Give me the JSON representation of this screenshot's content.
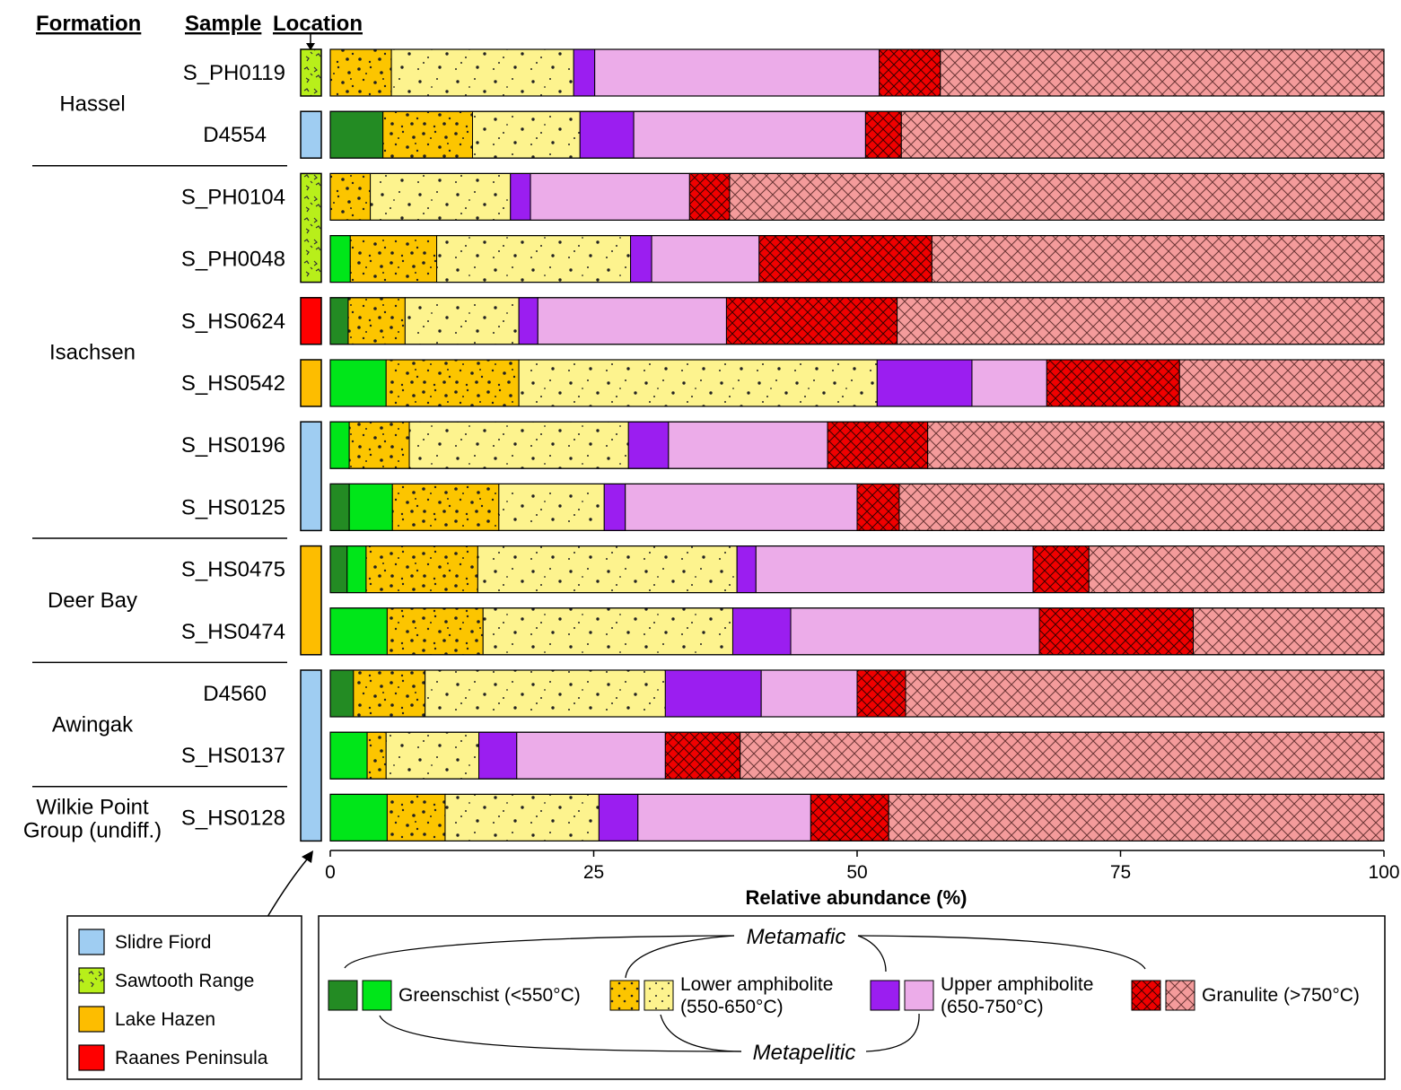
{
  "headers": {
    "formation": "Formation",
    "sample": "Sample",
    "location": "Location"
  },
  "formations": [
    {
      "name": "Hassel",
      "rows": [
        0,
        1
      ]
    },
    {
      "name": "Isachsen",
      "rows": [
        2,
        3,
        4,
        5,
        6,
        7
      ]
    },
    {
      "name": "Deer Bay",
      "rows": [
        8,
        9
      ]
    },
    {
      "name": "Awingak",
      "rows": [
        10,
        11
      ]
    },
    {
      "name": "Wilkie Point Group (undiff.)",
      "lines": [
        "Wilkie Point",
        "Group (undiff.)"
      ],
      "rows": [
        12
      ]
    }
  ],
  "locations": {
    "slidre_fiord": {
      "label": "Slidre Fiord",
      "color": "#9fcdf2"
    },
    "sawtooth_range": {
      "label": "Sawtooth Range",
      "color": "#b8ef1a"
    },
    "lake_hazen": {
      "label": "Lake Hazen",
      "color": "#fdbd00"
    },
    "raanes_peninsula": {
      "label": "Raanes Peninsula",
      "color": "#ff0000"
    }
  },
  "location_blocks": [
    {
      "location": "sawtooth_range",
      "rows": [
        0
      ]
    },
    {
      "location": "slidre_fiord",
      "rows": [
        1
      ]
    },
    {
      "location": "sawtooth_range",
      "rows": [
        2,
        3
      ]
    },
    {
      "location": "raanes_peninsula",
      "rows": [
        4
      ]
    },
    {
      "location": "lake_hazen",
      "rows": [
        5
      ]
    },
    {
      "location": "slidre_fiord",
      "rows": [
        6,
        7
      ]
    },
    {
      "location": "lake_hazen",
      "rows": [
        8,
        9
      ]
    },
    {
      "location": "slidre_fiord",
      "rows": [
        10,
        11,
        12
      ]
    }
  ],
  "categories": [
    {
      "key": "gs_mafic",
      "group": "Greenschist",
      "type": "Metamafic",
      "color": "#238b23",
      "pattern": "solid"
    },
    {
      "key": "gs_pelitic",
      "group": "Greenschist",
      "type": "Metapelitic",
      "color": "#00e619",
      "pattern": "solid"
    },
    {
      "key": "la_mafic",
      "group": "Lower amphibolite",
      "type": "Metamafic",
      "color": "#fcc500",
      "pattern": "dots-dense"
    },
    {
      "key": "la_pelitic",
      "group": "Lower amphibolite",
      "type": "Metapelitic",
      "color": "#fdf38e",
      "pattern": "dots-sparse"
    },
    {
      "key": "ua_mafic",
      "group": "Upper amphibolite",
      "type": "Metamafic",
      "color": "#9b1ef0",
      "pattern": "solid"
    },
    {
      "key": "ua_pelitic",
      "group": "Upper amphibolite",
      "type": "Metapelitic",
      "color": "#ecace9",
      "pattern": "solid"
    },
    {
      "key": "gr_mafic",
      "group": "Granulite",
      "type": "Metamafic",
      "color": "#f00000",
      "pattern": "cross-dense"
    },
    {
      "key": "gr_pelitic",
      "group": "Granulite",
      "type": "Metapelitic",
      "color": "#f49b9b",
      "pattern": "cross-sparse"
    }
  ],
  "chart_data": {
    "type": "bar",
    "orientation": "horizontal",
    "stacked": true,
    "xlabel": "Relative abundance (%)",
    "xlim": [
      0,
      100
    ],
    "xticks": [
      0,
      25,
      50,
      75,
      100
    ],
    "categories": [
      "S_PH0119",
      "D4554",
      "S_PH0104",
      "S_PH0048",
      "S_HS0624",
      "S_HS0542",
      "S_HS0196",
      "S_HS0125",
      "S_HS0475",
      "S_HS0474",
      "D4560",
      "S_HS0137",
      "S_HS0128"
    ],
    "series": [
      {
        "name": "Greenschist metamafic",
        "values": [
          0,
          5,
          0,
          0,
          1.7,
          0,
          0,
          1.8,
          1.6,
          0,
          2.2,
          0,
          0
        ]
      },
      {
        "name": "Greenschist metapelitic",
        "values": [
          0,
          0,
          0,
          1.9,
          0,
          5.3,
          1.8,
          4.1,
          1.8,
          5.4,
          0,
          3.5,
          5.4
        ]
      },
      {
        "name": "Lower amphibolite metamafic",
        "values": [
          5.8,
          8.5,
          3.8,
          8.2,
          5.4,
          12.6,
          5.7,
          10.1,
          10.6,
          9.1,
          6.8,
          1.8,
          5.5
        ]
      },
      {
        "name": "Lower amphibolite metapelitic",
        "values": [
          17.3,
          10.2,
          13.3,
          18.4,
          10.8,
          34,
          20.8,
          10,
          24.6,
          23.7,
          22.8,
          8.8,
          14.6
        ]
      },
      {
        "name": "Upper amphibolite metamafic",
        "values": [
          2,
          5.1,
          1.9,
          2,
          1.8,
          9,
          3.8,
          2,
          1.8,
          5.5,
          9.1,
          3.6,
          3.7
        ]
      },
      {
        "name": "Upper amphibolite metapelitic",
        "values": [
          27,
          22,
          15.1,
          10.2,
          17.9,
          7.1,
          15.1,
          22,
          26.3,
          23.6,
          9.1,
          14.1,
          16.4
        ]
      },
      {
        "name": "Granulite metamafic",
        "values": [
          5.8,
          3.4,
          3.8,
          16.4,
          16.2,
          12.6,
          9.5,
          4,
          5.3,
          14.6,
          4.6,
          7.1,
          7.4
        ]
      },
      {
        "name": "Granulite metapelitic",
        "values": [
          42.1,
          45.8,
          62.1,
          42.9,
          46.2,
          19.4,
          43.3,
          46,
          28,
          18.1,
          45.4,
          61.1,
          47
        ]
      }
    ]
  },
  "legend": {
    "metamafic": "Metamafic",
    "metapelitic": "Metapelitic",
    "groups": [
      {
        "line1": "Greenschist (<550°C)",
        "line2": ""
      },
      {
        "line1": "Lower amphibolite",
        "line2": "(550-650°C)"
      },
      {
        "line1": "Upper amphibolite",
        "line2": "(650-750°C)"
      },
      {
        "line1": "Granulite (>750°C)",
        "line2": ""
      }
    ]
  }
}
